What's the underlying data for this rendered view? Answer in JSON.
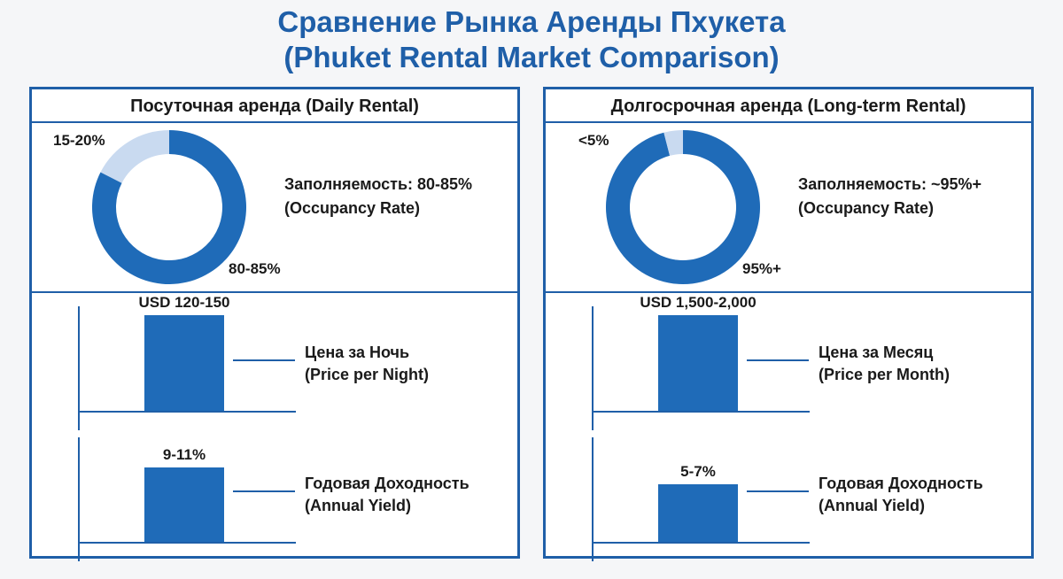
{
  "title": {
    "line1": "Сравнение Рынка Аренды Пхукета",
    "line2": "(Phuket Rental Market Comparison)"
  },
  "colors": {
    "primary": "#1f6bb8",
    "light": "#c9daf0",
    "border": "#1f5fa8",
    "title": "#1f5fa8"
  },
  "chart_data": [
    {
      "type": "pie",
      "panel": "Посуточная аренда (Daily Rental)",
      "slices": [
        {
          "label": "80-85%",
          "value": 82.5
        },
        {
          "label": "15-20%",
          "value": 17.5
        }
      ],
      "caption_line1": "Заполняемость: 80-85%",
      "caption_line2": "(Occupancy Rate)"
    },
    {
      "type": "bar",
      "panel": "Посуточная аренда (Daily Rental)",
      "value_label": "USD 120-150",
      "values": [
        135
      ],
      "caption_line1": "Цена за Ночь",
      "caption_line2": "(Price per Night)"
    },
    {
      "type": "bar",
      "panel": "Посуточная аренда (Daily Rental)",
      "value_label": "9-11%",
      "values": [
        10
      ],
      "caption_line1": "Годовая Доходность",
      "caption_line2": "(Annual Yield)"
    },
    {
      "type": "pie",
      "panel": "Долгосрочная аренда (Long-term Rental)",
      "slices": [
        {
          "label": "95%+",
          "value": 96
        },
        {
          "label": "<5%",
          "value": 4
        }
      ],
      "caption_line1": "Заполняемость: ~95%+",
      "caption_line2": "(Occupancy Rate)"
    },
    {
      "type": "bar",
      "panel": "Долгосрочная аренда (Long-term Rental)",
      "value_label": "USD 1,500-2,000",
      "values": [
        1750
      ],
      "caption_line1": "Цена за Месяц",
      "caption_line2": "(Price per Month)"
    },
    {
      "type": "bar",
      "panel": "Долгосрочная аренда (Long-term Rental)",
      "value_label": "5-7%",
      "values": [
        6
      ],
      "caption_line1": "Годовая Доходность",
      "caption_line2": "(Annual Yield)"
    }
  ],
  "bar_fill_fractions": [
    1.0,
    1.0,
    0.78,
    1.0,
    1.0,
    0.6
  ]
}
